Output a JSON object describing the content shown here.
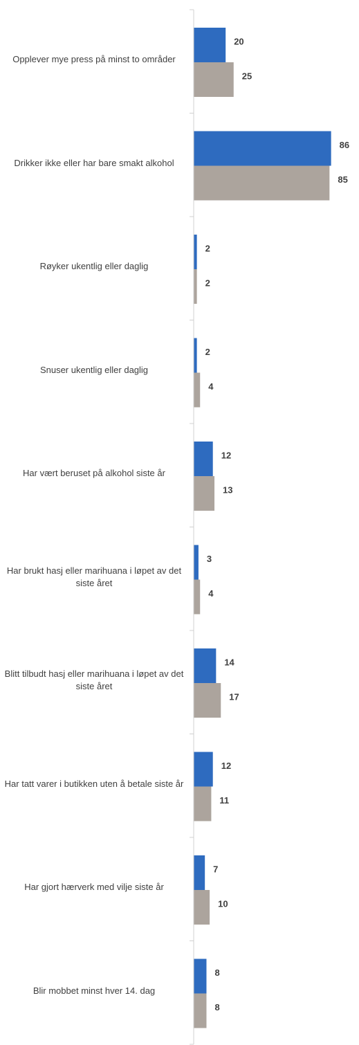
{
  "chart_data": {
    "type": "bar",
    "orientation": "horizontal",
    "categories": [
      "Opplever mye press på minst to områder",
      "Drikker ikke eller har bare smakt alkohol",
      "Røyker ukentlig eller daglig",
      "Snuser ukentlig eller daglig",
      "Har vært beruset på alkohol siste år",
      "Har brukt hasj eller marihuana i løpet av det siste året",
      "Blitt tilbudt hasj eller marihuana i løpet av det siste året",
      "Har tatt varer i butikken uten å betale siste år",
      "Har gjort hærverk med vilje siste år",
      "Blir mobbet minst hver 14. dag"
    ],
    "series": [
      {
        "color": "#2e6bbf",
        "values": [
          20,
          86,
          2,
          2,
          12,
          3,
          14,
          12,
          7,
          8
        ]
      },
      {
        "color": "#aca49d",
        "values": [
          25,
          85,
          2,
          4,
          13,
          4,
          17,
          11,
          10,
          8
        ]
      }
    ],
    "xlim": [
      0,
      100
    ]
  }
}
